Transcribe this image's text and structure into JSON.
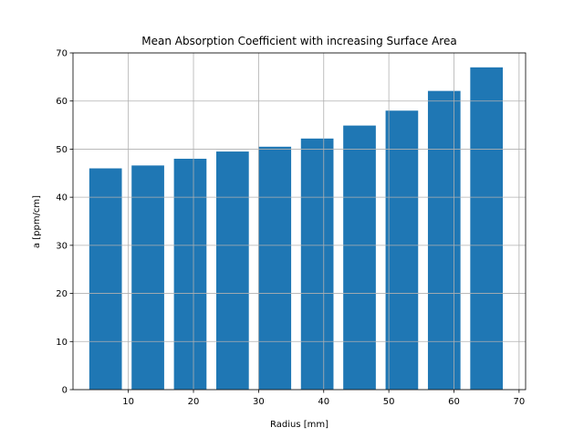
{
  "chart_data": {
    "type": "bar",
    "title": "Mean Absorption Coefficient with increasing Surface Area",
    "xlabel": "Radius [mm]",
    "ylabel": "a [ppm/cm]",
    "x": [
      6.5,
      13,
      19.5,
      26,
      32.5,
      39,
      45.5,
      52,
      58.5,
      65
    ],
    "values": [
      46.0,
      46.6,
      48.0,
      49.5,
      50.5,
      52.2,
      54.9,
      58.0,
      62.1,
      67.0
    ],
    "bar_width": 5,
    "xlim": [
      1.5,
      71
    ],
    "ylim": [
      0,
      70
    ],
    "xticks": [
      10,
      20,
      30,
      40,
      50,
      60,
      70
    ],
    "yticks": [
      0,
      10,
      20,
      30,
      40,
      50,
      60,
      70
    ],
    "grid": true,
    "bar_color": "#1f77b4"
  }
}
